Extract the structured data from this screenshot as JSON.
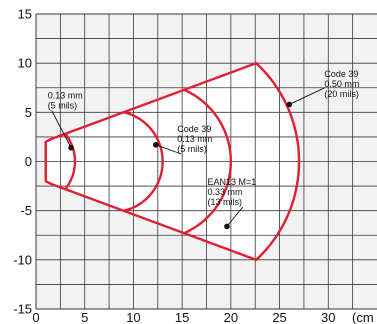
{
  "chart_data": {
    "type": "line",
    "title": "",
    "xlabel": "",
    "ylabel": "",
    "xlim": [
      0,
      35
    ],
    "ylim": [
      -15,
      15
    ],
    "xticks": [
      0,
      5,
      10,
      15,
      20,
      25,
      30
    ],
    "yticks": [
      -15,
      -10,
      -5,
      0,
      5,
      10,
      15
    ],
    "x_unit_label": "(cm",
    "grid": true,
    "colors": {
      "background": "#f2f2f2",
      "zone_fill": "#ffffff",
      "curve": "#e02032",
      "grid": "#3a3a3a"
    },
    "series": [
      {
        "label_lines": [
          "0.13 mm",
          "(5 mils)"
        ],
        "depth_of_field_cm": [
          1.0,
          4.0
        ],
        "max_half_width_cm": 7.6
      },
      {
        "label_lines": [
          "Code 39",
          "0.13 mm",
          "(5 mils)"
        ],
        "depth_of_field_cm": [
          1.0,
          13.0
        ],
        "max_half_width_cm": 9.6
      },
      {
        "label_lines": [
          "EAN13 M=1",
          "0.33 mm",
          "(13 mils)"
        ],
        "depth_of_field_cm": [
          1.0,
          20.0
        ],
        "max_half_width_cm": 10.0
      },
      {
        "label_lines": [
          "Code 39",
          "0.50 mm",
          "(20 mils)"
        ],
        "depth_of_field_cm": [
          1.0,
          27.0
        ],
        "max_half_width_cm": 10.0
      }
    ],
    "annotations": [
      {
        "series": 0,
        "point": [
          3.6,
          1.4
        ],
        "text_anchor": [
          1.2,
          6.4
        ]
      },
      {
        "series": 1,
        "point": [
          12.3,
          1.7
        ],
        "text_anchor": [
          14.5,
          3.0
        ]
      },
      {
        "series": 2,
        "point": [
          19.6,
          -6.6
        ],
        "text_anchor": [
          17.6,
          -2.4
        ]
      },
      {
        "series": 3,
        "point": [
          26.0,
          5.8
        ],
        "text_anchor": [
          29.6,
          8.6
        ]
      }
    ]
  }
}
